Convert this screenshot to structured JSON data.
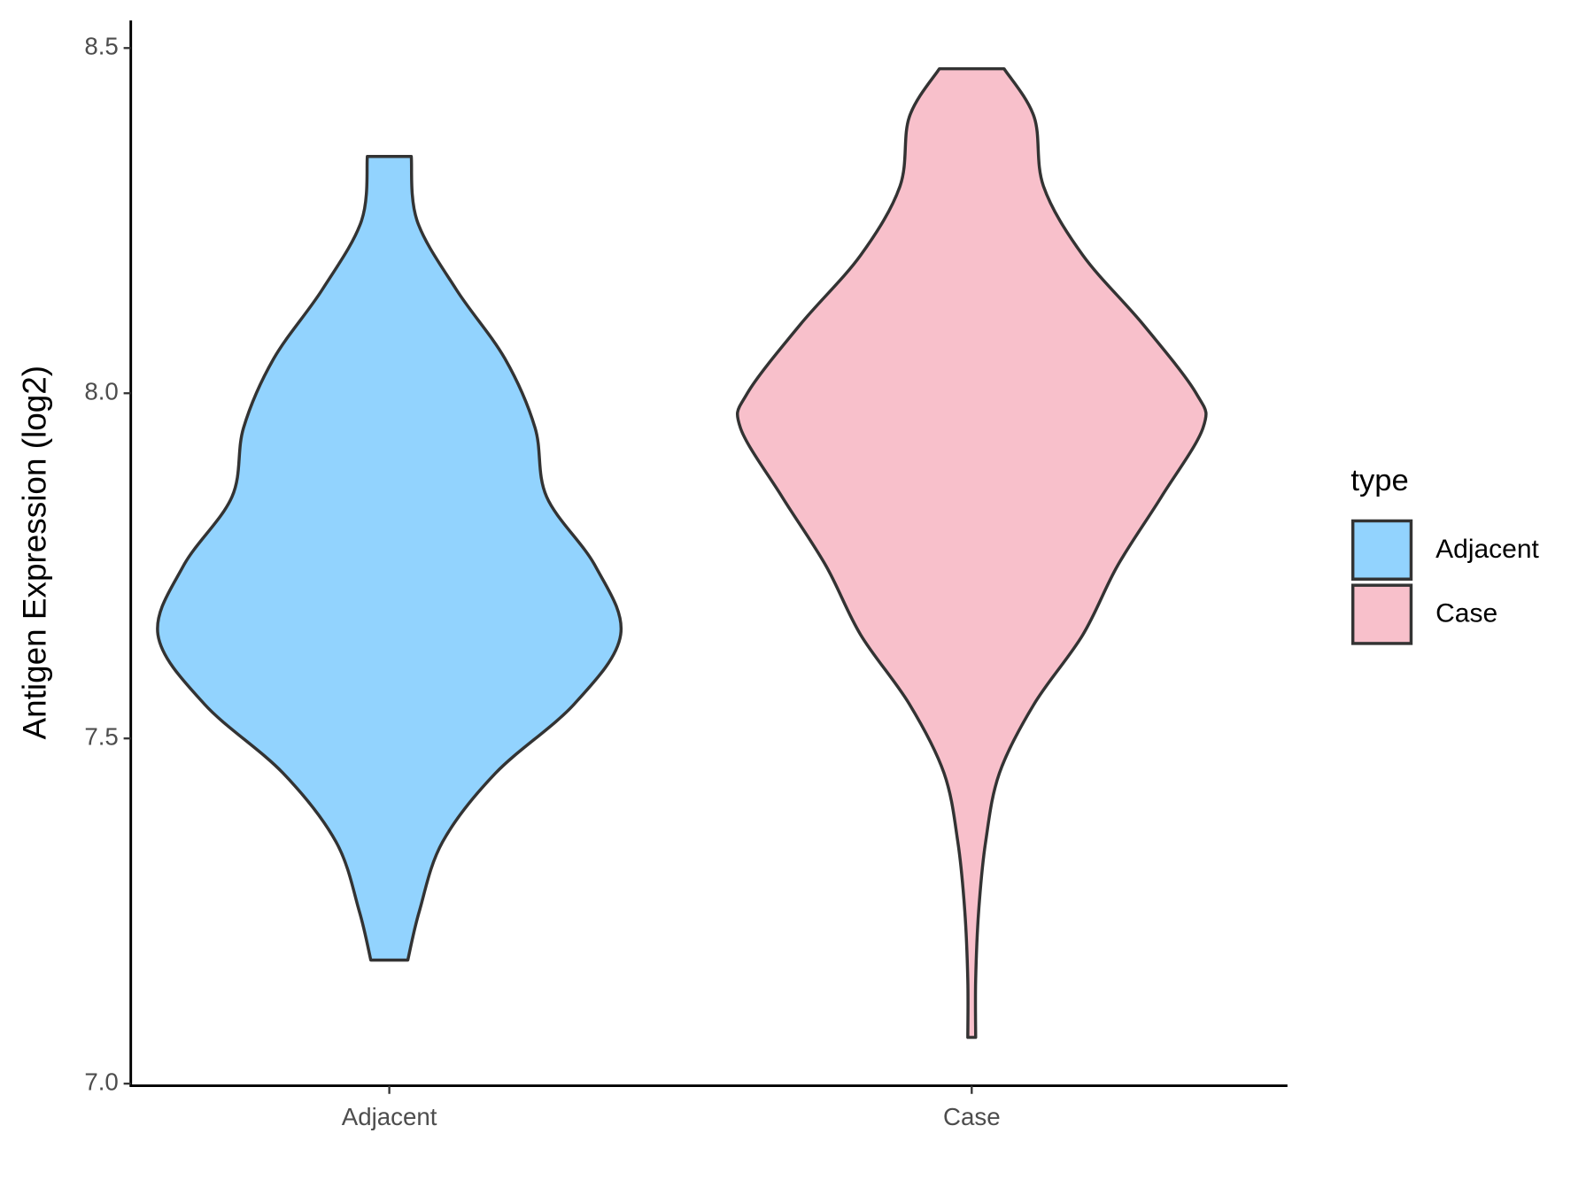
{
  "chart_data": {
    "type": "violin",
    "y_label": "Antigen Expression (log2)",
    "categories": [
      "Adjacent",
      "Case"
    ],
    "legend_title": "type",
    "legend": "right",
    "series": [
      {
        "name": "Adjacent",
        "color": "#92d3fe",
        "y": [
          8.343,
          8.25,
          8.15,
          8.05,
          7.95,
          7.85,
          7.75,
          7.65,
          7.55,
          7.45,
          7.35,
          7.25,
          7.179
        ],
        "widths": [
          0.095,
          0.12,
          0.29,
          0.5,
          0.63,
          0.68,
          0.89,
          1.0,
          0.8,
          0.46,
          0.23,
          0.13,
          0.08
        ]
      },
      {
        "name": "Case",
        "color": "#f8c0cb",
        "y": [
          8.47,
          8.4,
          8.3,
          8.2,
          8.1,
          8.0,
          7.95,
          7.85,
          7.75,
          7.65,
          7.55,
          7.45,
          7.35,
          7.25,
          7.15,
          7.067
        ],
        "widths": [
          0.14,
          0.27,
          0.31,
          0.48,
          0.74,
          0.97,
          1.0,
          0.82,
          0.63,
          0.48,
          0.27,
          0.12,
          0.06,
          0.03,
          0.017,
          0.017
        ]
      }
    ],
    "ylim": [
      6.997,
      8.54
    ],
    "yticks": [
      {
        "value": 7,
        "label": "7.0"
      },
      7.5,
      {
        "value": 8,
        "label": "8.0"
      },
      8.5
    ],
    "grid": false
  }
}
